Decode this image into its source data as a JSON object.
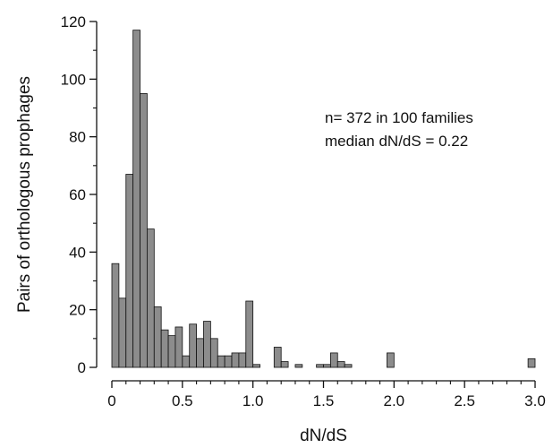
{
  "chart_data": {
    "type": "bar",
    "xlabel": "dN/dS",
    "ylabel": "Pairs of orthologous prophages",
    "xlim": [
      0,
      3.0
    ],
    "ylim": [
      0,
      120
    ],
    "xticks": [
      0,
      0.5,
      1.0,
      1.5,
      2.0,
      2.5,
      3.0
    ],
    "xtick_labels": [
      "0",
      "0.5",
      "1.0",
      "1.5",
      "2.0",
      "2.5",
      "3.0"
    ],
    "yticks": [
      0,
      20,
      40,
      60,
      80,
      100,
      120
    ],
    "ytick_labels": [
      "0",
      "20",
      "40",
      "60",
      "80",
      "100",
      "120"
    ],
    "bin_width": 0.05,
    "bin_starts": [
      0.0,
      0.05,
      0.1,
      0.15,
      0.2,
      0.25,
      0.3,
      0.35,
      0.4,
      0.45,
      0.5,
      0.55,
      0.6,
      0.65,
      0.7,
      0.75,
      0.8,
      0.85,
      0.9,
      0.95,
      1.0,
      1.05,
      1.1,
      1.15,
      1.2,
      1.25,
      1.3,
      1.35,
      1.4,
      1.45,
      1.5,
      1.55,
      1.6,
      1.65,
      1.7,
      1.75,
      1.8,
      1.85,
      1.9,
      1.95,
      2.0,
      2.05,
      2.1,
      2.15,
      2.2,
      2.25,
      2.3,
      2.35,
      2.4,
      2.45,
      2.5,
      2.55,
      2.6,
      2.65,
      2.7,
      2.75,
      2.8,
      2.85,
      2.9,
      2.95
    ],
    "values": [
      36,
      24,
      67,
      117,
      95,
      48,
      21,
      13,
      11,
      14,
      4,
      15,
      10,
      16,
      10,
      4,
      4,
      5,
      5,
      23,
      1,
      0,
      0,
      7,
      2,
      0,
      1,
      0,
      0,
      1,
      1,
      5,
      2,
      1,
      0,
      0,
      0,
      0,
      0,
      5,
      0,
      0,
      0,
      0,
      0,
      0,
      0,
      0,
      0,
      0,
      0,
      0,
      0,
      0,
      0,
      0,
      0,
      0,
      0,
      3
    ],
    "bar_color": "#8c8c8c",
    "annotation_lines": [
      "n= 372 in 100 families",
      "median dN/dS = 0.22"
    ]
  }
}
